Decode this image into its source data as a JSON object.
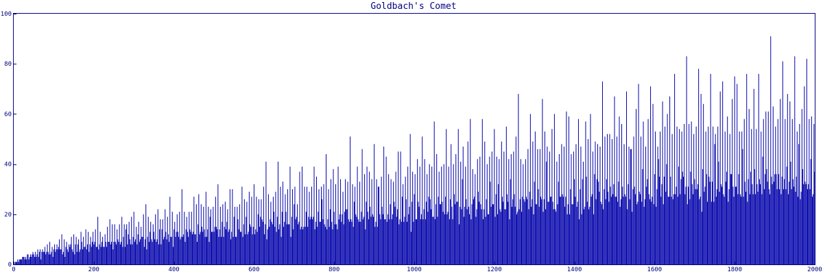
{
  "chart_data": {
    "type": "bar",
    "title": "Goldbach's Comet",
    "xlabel": "",
    "ylabel": "",
    "xlim": [
      0,
      2000
    ],
    "ylim": [
      0,
      100
    ],
    "x_ticks": [
      0,
      200,
      400,
      600,
      800,
      1000,
      1200,
      1400,
      1600,
      1800,
      2000
    ],
    "y_ticks": [
      0,
      20,
      40,
      60,
      80,
      100
    ],
    "grid": false,
    "legend": "none",
    "bar_color": "#0000aa",
    "axis_color": "#00007f",
    "series": [
      {
        "description_of_values": "x: even numbers 4..2000 step 2; y: number of ways to write x as sum of two primes (Goldbach partitions)",
        "x_start": 4,
        "x_end": 2000,
        "x_step": 2,
        "generator": "goldbach-partition-count"
      }
    ]
  }
}
